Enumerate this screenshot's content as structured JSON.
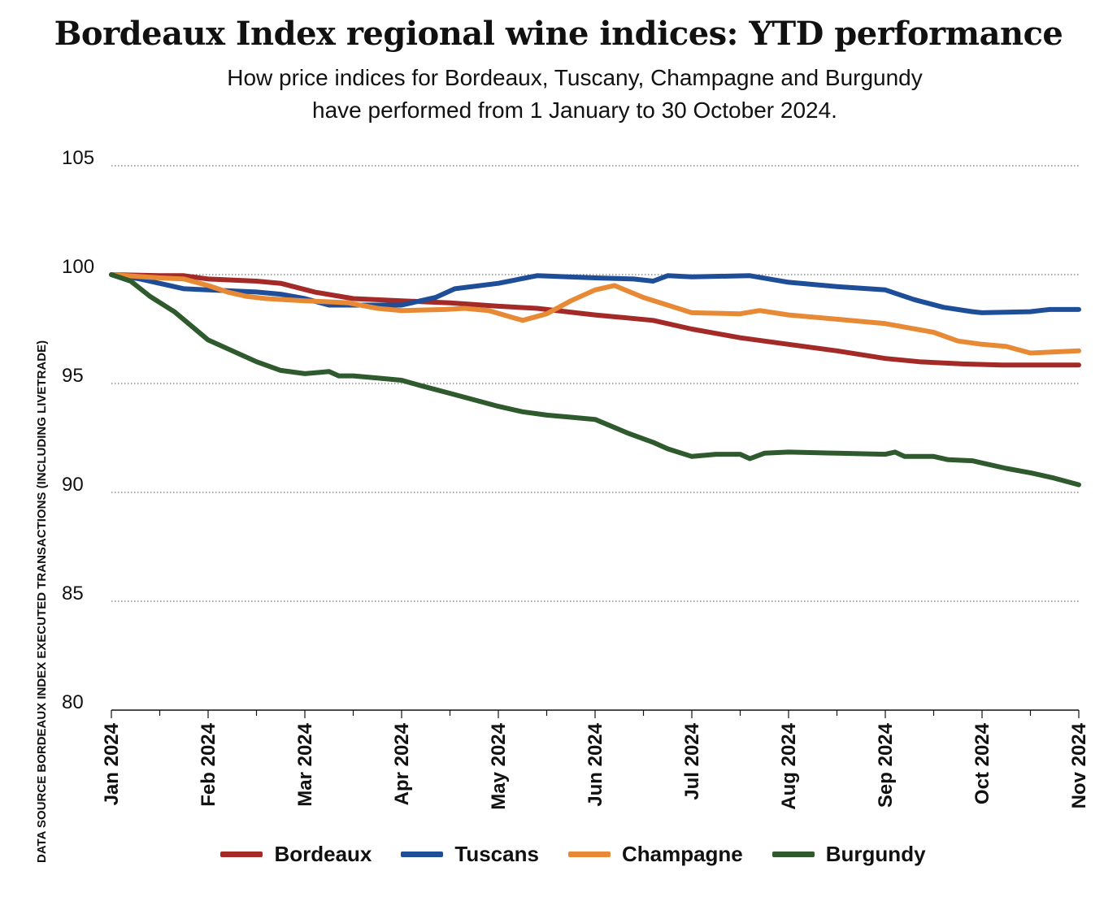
{
  "header": {
    "title": "Bordeaux Index regional wine indices: YTD performance",
    "subtitle_line1": "How price indices for Bordeaux, Tuscany, Champagne and Burgundy",
    "subtitle_line2": "have performed from 1 January to 30 October 2024."
  },
  "source_note": "DATA SOURCE BORDEAUX INDEX EXECUTED TRANSACTIONS (INCLUDING LIVETRADE)",
  "chart_data": {
    "type": "line",
    "title": "Bordeaux Index regional wine indices: YTD performance",
    "xlabel": "",
    "ylabel": "",
    "ylim": [
      80,
      105
    ],
    "xlim": [
      0,
      10
    ],
    "yticks": [
      80,
      85,
      90,
      95,
      100,
      105
    ],
    "ytick_labels": [
      "80",
      "85",
      "90",
      "95",
      "100",
      "105"
    ],
    "xtick_labels": [
      "Jan 2024",
      "Feb 2024",
      "Mar 2024",
      "Apr 2024",
      "May 2024",
      "Jun 2024",
      "Jul 2024",
      "Aug 2024",
      "Sep 2024",
      "Oct 2024",
      "Nov 2024"
    ],
    "grid": "horizontal dotted",
    "legend": "bottom",
    "series": [
      {
        "name": "Bordeaux",
        "color": "#a32a26",
        "x": [
          0,
          0.5,
          0.75,
          1.0,
          1.5,
          1.75,
          2.1,
          2.5,
          3.0,
          3.5,
          4.0,
          4.4,
          5.0,
          5.6,
          6.0,
          6.5,
          7.0,
          7.5,
          8.0,
          8.35,
          8.8,
          9.2,
          9.5,
          10.0
        ],
        "y": [
          100.0,
          99.95,
          99.95,
          99.8,
          99.7,
          99.6,
          99.2,
          98.9,
          98.8,
          98.7,
          98.55,
          98.45,
          98.15,
          97.9,
          97.5,
          97.1,
          96.8,
          96.5,
          96.15,
          96.0,
          95.9,
          95.85,
          95.85,
          95.85
        ]
      },
      {
        "name": "Tuscans",
        "color": "#1f4e99",
        "x": [
          0,
          0.3,
          0.75,
          1.0,
          1.5,
          1.75,
          2.0,
          2.25,
          2.6,
          3.0,
          3.35,
          3.55,
          4.0,
          4.4,
          5.0,
          5.4,
          5.6,
          5.75,
          6.0,
          6.6,
          7.0,
          7.5,
          8.0,
          8.3,
          8.6,
          8.9,
          9.0,
          9.5,
          9.6,
          9.7,
          10.0
        ],
        "y": [
          100.0,
          99.8,
          99.35,
          99.3,
          99.2,
          99.1,
          98.9,
          98.6,
          98.6,
          98.6,
          98.95,
          99.35,
          99.6,
          99.95,
          99.85,
          99.8,
          99.7,
          99.95,
          99.9,
          99.95,
          99.65,
          99.45,
          99.3,
          98.85,
          98.5,
          98.3,
          98.25,
          98.3,
          98.35,
          98.4,
          98.4
        ]
      },
      {
        "name": "Champagne",
        "color": "#e88a35",
        "x": [
          0,
          0.5,
          0.75,
          1.0,
          1.2,
          1.4,
          1.6,
          2.0,
          2.25,
          2.45,
          2.75,
          3.0,
          3.45,
          3.65,
          3.9,
          4.25,
          4.5,
          4.75,
          5.0,
          5.2,
          5.5,
          6.0,
          6.5,
          6.7,
          7.0,
          7.5,
          8.0,
          8.5,
          8.75,
          9.0,
          9.25,
          9.5,
          10.0
        ],
        "y": [
          100.0,
          99.85,
          99.8,
          99.5,
          99.2,
          99.0,
          98.9,
          98.8,
          98.75,
          98.7,
          98.45,
          98.35,
          98.4,
          98.45,
          98.35,
          97.9,
          98.2,
          98.8,
          99.3,
          99.5,
          98.95,
          98.25,
          98.2,
          98.35,
          98.15,
          97.95,
          97.75,
          97.35,
          96.95,
          96.8,
          96.7,
          96.4,
          96.5
        ]
      },
      {
        "name": "Burgundy",
        "color": "#2e5a2e",
        "x": [
          0,
          0.2,
          0.4,
          0.65,
          1.0,
          1.25,
          1.5,
          1.75,
          2.0,
          2.25,
          2.35,
          2.5,
          2.75,
          3.0,
          3.2,
          3.5,
          3.75,
          4.0,
          4.25,
          4.5,
          4.75,
          5.0,
          5.35,
          5.6,
          5.75,
          6.0,
          6.25,
          6.5,
          6.6,
          6.75,
          7.0,
          7.5,
          8.0,
          8.1,
          8.2,
          8.35,
          8.5,
          8.65,
          8.9,
          9.0,
          9.25,
          9.5,
          9.75,
          10.0
        ],
        "y": [
          100.0,
          99.7,
          99.0,
          98.3,
          97.0,
          96.5,
          96.0,
          95.6,
          95.45,
          95.55,
          95.35,
          95.35,
          95.25,
          95.15,
          94.9,
          94.55,
          94.25,
          93.95,
          93.7,
          93.55,
          93.45,
          93.35,
          92.7,
          92.3,
          92.0,
          91.65,
          91.75,
          91.75,
          91.55,
          91.8,
          91.85,
          91.8,
          91.75,
          91.85,
          91.65,
          91.65,
          91.65,
          91.5,
          91.45,
          91.35,
          91.1,
          90.9,
          90.65,
          90.35
        ]
      }
    ]
  }
}
